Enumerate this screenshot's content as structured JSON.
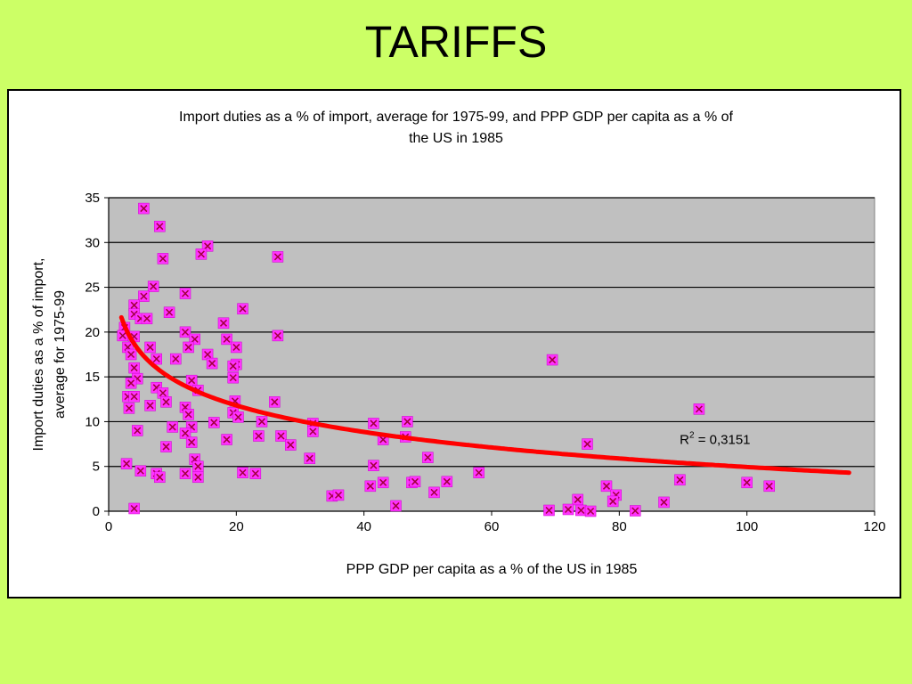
{
  "slide": {
    "title": "TARIFFS"
  },
  "chart_data": {
    "type": "scatter",
    "title": "Import duties as a % of import, average for 1975-99, and PPP GDP per capita as a % of the US in 1985",
    "title_lines": [
      "Import duties as a % of import, average for 1975-99, and PPP GDP per capita as a % of",
      "the US in 1985"
    ],
    "xlabel": "PPP GDP per capita as a % of the US in 1985",
    "ylabel_lines": [
      "Import duties as a % of import,",
      "average for 1975-99"
    ],
    "xlim": [
      0,
      120
    ],
    "ylim": [
      0,
      35
    ],
    "xticks": [
      0,
      20,
      40,
      60,
      80,
      100,
      120
    ],
    "yticks": [
      0,
      5,
      10,
      15,
      20,
      25,
      30,
      35
    ],
    "grid": true,
    "plot_background": "#c0c0c0",
    "marker_color": "#ff33ff",
    "trend_color": "#ff0000",
    "annotation": {
      "r2_prefix": "R",
      "r2_sup": "2",
      "r2_value": " = 0,3151",
      "x": 95,
      "y": 7.5
    },
    "trendline": {
      "type": "logarithmic",
      "a": 24.6,
      "b": -4.27,
      "x_from": 2,
      "x_to": 116
    },
    "points": [
      [
        5.5,
        33.8
      ],
      [
        8,
        31.8
      ],
      [
        8.5,
        28.2
      ],
      [
        15.5,
        29.6
      ],
      [
        14.5,
        28.7
      ],
      [
        26.5,
        28.4
      ],
      [
        7,
        25.1
      ],
      [
        12,
        24.3
      ],
      [
        5.5,
        24
      ],
      [
        4,
        23
      ],
      [
        9.5,
        22.2
      ],
      [
        21,
        22.6
      ],
      [
        4,
        22
      ],
      [
        5,
        21.5
      ],
      [
        6,
        21.5
      ],
      [
        2.5,
        20.5
      ],
      [
        2.2,
        19.6
      ],
      [
        4,
        19.5
      ],
      [
        12,
        20
      ],
      [
        18,
        21
      ],
      [
        26.5,
        19.6
      ],
      [
        13.5,
        19.2
      ],
      [
        18.5,
        19.2
      ],
      [
        3,
        18.3
      ],
      [
        6.5,
        18.3
      ],
      [
        12.5,
        18.3
      ],
      [
        20,
        18.3
      ],
      [
        3.5,
        17.5
      ],
      [
        7.5,
        17
      ],
      [
        10.5,
        17
      ],
      [
        15.5,
        17.5
      ],
      [
        16.2,
        16.5
      ],
      [
        20,
        16.4
      ],
      [
        19.5,
        16.2
      ],
      [
        69.5,
        16.9
      ],
      [
        4,
        16
      ],
      [
        4.5,
        14.8
      ],
      [
        3.5,
        14.3
      ],
      [
        13,
        14.6
      ],
      [
        19.5,
        14.9
      ],
      [
        7.5,
        13.8
      ],
      [
        14,
        13.5
      ],
      [
        8.5,
        13.2
      ],
      [
        3,
        12.8
      ],
      [
        4,
        12.8
      ],
      [
        9,
        12.2
      ],
      [
        19.8,
        12.3
      ],
      [
        26,
        12.2
      ],
      [
        6.5,
        11.8
      ],
      [
        12,
        11.6
      ],
      [
        3.2,
        11.5
      ],
      [
        19.5,
        11
      ],
      [
        12.5,
        10.8
      ],
      [
        20.3,
        10.5
      ],
      [
        16.5,
        9.9
      ],
      [
        24,
        10
      ],
      [
        32,
        9.8
      ],
      [
        41.5,
        9.8
      ],
      [
        46.8,
        10
      ],
      [
        92.5,
        11.4
      ],
      [
        10,
        9.4
      ],
      [
        13,
        9.4
      ],
      [
        4.5,
        9
      ],
      [
        32,
        8.9
      ],
      [
        12,
        8.7
      ],
      [
        23.5,
        8.4
      ],
      [
        27,
        8.4
      ],
      [
        43,
        8
      ],
      [
        46.5,
        8.3
      ],
      [
        18.5,
        8
      ],
      [
        13,
        7.7
      ],
      [
        9,
        7.2
      ],
      [
        28.5,
        7.4
      ],
      [
        75,
        7.5
      ],
      [
        31.5,
        5.9
      ],
      [
        50,
        6
      ],
      [
        13.5,
        5.8
      ],
      [
        14,
        5
      ],
      [
        2.8,
        5.3
      ],
      [
        41.5,
        5.1
      ],
      [
        5,
        4.5
      ],
      [
        7.5,
        4.2
      ],
      [
        12,
        4.2
      ],
      [
        14,
        3.8
      ],
      [
        21,
        4.3
      ],
      [
        23,
        4.2
      ],
      [
        58,
        4.3
      ],
      [
        8,
        3.8
      ],
      [
        43,
        3.2
      ],
      [
        47.5,
        3.2
      ],
      [
        48,
        3.3
      ],
      [
        53,
        3.3
      ],
      [
        41,
        2.8
      ],
      [
        51,
        2.1
      ],
      [
        78,
        2.8
      ],
      [
        89.5,
        3.5
      ],
      [
        100,
        3.2
      ],
      [
        103.5,
        2.8
      ],
      [
        35,
        1.7
      ],
      [
        36,
        1.8
      ],
      [
        79.5,
        1.8
      ],
      [
        79,
        1.1
      ],
      [
        73.5,
        1.3
      ],
      [
        87,
        1
      ],
      [
        45,
        0.6
      ],
      [
        4,
        0.3
      ],
      [
        69,
        0.1
      ],
      [
        72,
        0.2
      ],
      [
        74,
        0.1
      ],
      [
        75.5,
        0
      ],
      [
        82.5,
        0.05
      ]
    ]
  }
}
